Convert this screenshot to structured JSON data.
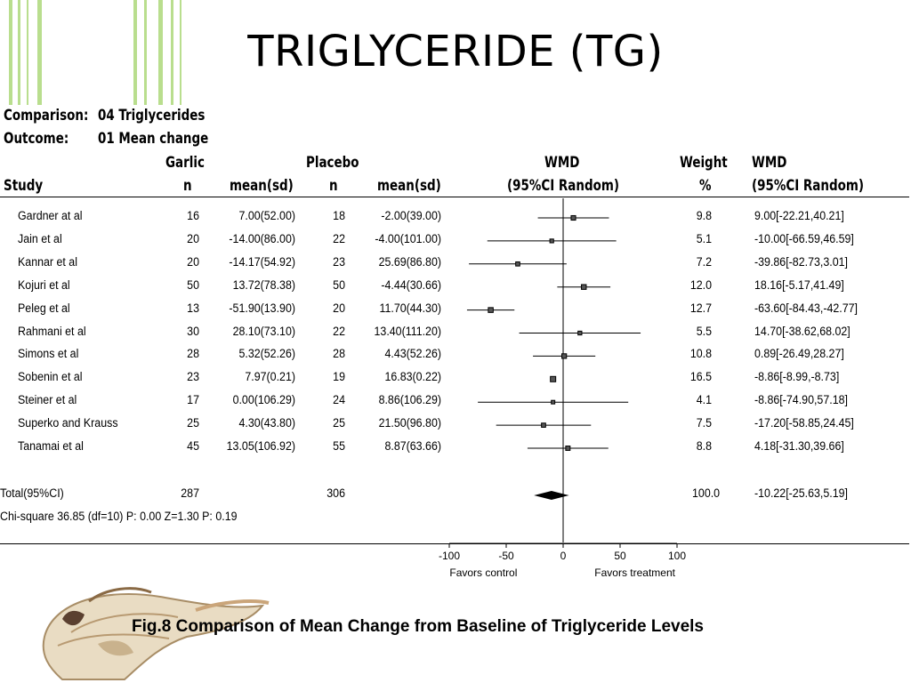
{
  "slide": {
    "title": "TRIGLYCERIDE (TG)",
    "caption": "Fig.8 Comparison of Mean Change from Baseline of Triglyceride Levels"
  },
  "header": {
    "comparison_label": "Comparison:",
    "comparison_value": "04 Triglycerides",
    "outcome_label": "Outcome:",
    "outcome_value": "01 Mean change",
    "garlic": "Garlic",
    "placebo": "Placebo",
    "wmd": "WMD",
    "weight": "Weight",
    "wmd2": "WMD",
    "study": "Study",
    "n1": "n",
    "meansd1": "mean(sd)",
    "n2": "n",
    "meansd2": "mean(sd)",
    "ci_random": "(95%CI Random)",
    "pct": "%",
    "ci_random2": "(95%CI Random)"
  },
  "colors": {
    "stripe": "#b9de8e",
    "ink": "#000000",
    "marker": "#555555"
  },
  "chart_data": {
    "type": "forest",
    "xlim": [
      -100,
      100
    ],
    "xticks": [
      "-100",
      "-50",
      "0",
      "50",
      "100"
    ],
    "xlabel_left": "Favors control",
    "xlabel_right": "Favors treatment",
    "studies": [
      {
        "name": "Gardner at al",
        "n1": "16",
        "ms1": "7.00(52.00)",
        "n2": "18",
        "ms2": "-2.00(39.00)",
        "weight": "9.8",
        "wmd_text": "9.00[-22.21,40.21]",
        "wmd": 9.0,
        "lo": -22.21,
        "hi": 40.21
      },
      {
        "name": "Jain et al",
        "n1": "20",
        "ms1": "-14.00(86.00)",
        "n2": "22",
        "ms2": "-4.00(101.00)",
        "weight": "5.1",
        "wmd_text": "-10.00[-66.59,46.59]",
        "wmd": -10.0,
        "lo": -66.59,
        "hi": 46.59
      },
      {
        "name": "Kannar et al",
        "n1": "20",
        "ms1": "-14.17(54.92)",
        "n2": "23",
        "ms2": "25.69(86.80)",
        "weight": "7.2",
        "wmd_text": "-39.86[-82.73,3.01]",
        "wmd": -39.86,
        "lo": -82.73,
        "hi": 3.01
      },
      {
        "name": "Kojuri et al",
        "n1": "50",
        "ms1": "13.72(78.38)",
        "n2": "50",
        "ms2": "-4.44(30.66)",
        "weight": "12.0",
        "wmd_text": "18.16[-5.17,41.49]",
        "wmd": 18.16,
        "lo": -5.17,
        "hi": 41.49
      },
      {
        "name": "Peleg et al",
        "n1": "13",
        "ms1": "-51.90(13.90)",
        "n2": "20",
        "ms2": "11.70(44.30)",
        "weight": "12.7",
        "wmd_text": "-63.60[-84.43,-42.77]",
        "wmd": -63.6,
        "lo": -84.43,
        "hi": -42.77
      },
      {
        "name": "Rahmani et al",
        "n1": "30",
        "ms1": "28.10(73.10)",
        "n2": "22",
        "ms2": "13.40(111.20)",
        "weight": "5.5",
        "wmd_text": "14.70[-38.62,68.02]",
        "wmd": 14.7,
        "lo": -38.62,
        "hi": 68.02
      },
      {
        "name": "Simons et al",
        "n1": "28",
        "ms1": "5.32(52.26)",
        "n2": "28",
        "ms2": "4.43(52.26)",
        "weight": "10.8",
        "wmd_text": "0.89[-26.49,28.27]",
        "wmd": 0.89,
        "lo": -26.49,
        "hi": 28.27
      },
      {
        "name": "Sobenin et al",
        "n1": "23",
        "ms1": "7.97(0.21)",
        "n2": "19",
        "ms2": "16.83(0.22)",
        "weight": "16.5",
        "wmd_text": "-8.86[-8.99,-8.73]",
        "wmd": -8.86,
        "lo": -8.99,
        "hi": -8.73
      },
      {
        "name": "Steiner et al",
        "n1": "17",
        "ms1": "0.00(106.29)",
        "n2": "24",
        "ms2": "8.86(106.29)",
        "weight": "4.1",
        "wmd_text": "-8.86[-74.90,57.18]",
        "wmd": -8.86,
        "lo": -74.9,
        "hi": 57.18
      },
      {
        "name": "Superko and Krauss",
        "n1": "25",
        "ms1": "4.30(43.80)",
        "n2": "25",
        "ms2": "21.50(96.80)",
        "weight": "7.5",
        "wmd_text": "-17.20[-58.85,24.45]",
        "wmd": -17.2,
        "lo": -58.85,
        "hi": 24.45
      },
      {
        "name": "Tanamai et al",
        "n1": "45",
        "ms1": "13.05(106.92)",
        "n2": "55",
        "ms2": "8.87(63.66)",
        "weight": "8.8",
        "wmd_text": "4.18[-31.30,39.66]",
        "wmd": 4.18,
        "lo": -31.3,
        "hi": 39.66
      }
    ],
    "total": {
      "name": "Total(95%CI)",
      "n1": "287",
      "n2": "306",
      "weight": "100.0",
      "wmd_text": "-10.22[-25.63,5.19]",
      "wmd": -10.22,
      "lo": -25.63,
      "hi": 5.19
    },
    "stats": "Chi-square 36.85 (df=10) P: 0.00  Z=1.30 P: 0.19"
  }
}
